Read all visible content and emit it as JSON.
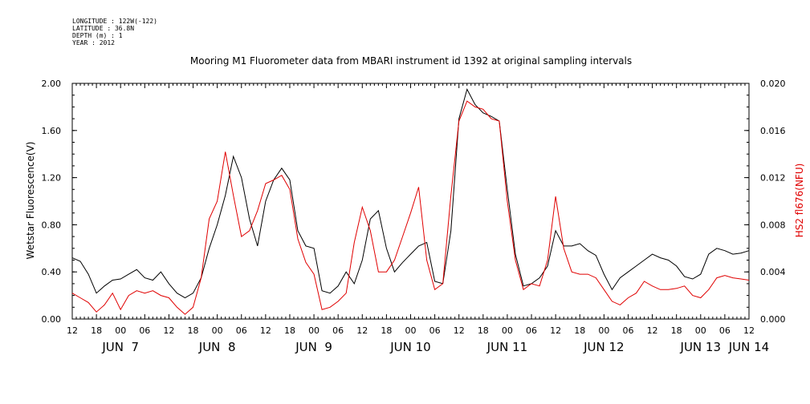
{
  "meta": {
    "longitude": "LONGITUDE : 122W(-122)",
    "latitude": "LATITUDE : 36.8N",
    "depth": "DEPTH (m) : 1",
    "year": "YEAR : 2012"
  },
  "chart_data": {
    "type": "line",
    "title": "Mooring M1 Fluorometer data from MBARI instrument id 1392 at original sampling intervals",
    "ylabel": "Wetstar Fluorescence(V)",
    "ylabel_right": "HS2 fl676(NFU)",
    "ylim": [
      0,
      2.0
    ],
    "ylim_right": [
      0,
      0.02
    ],
    "y_ticks": [
      "0.00",
      "0.40",
      "0.80",
      "1.20",
      "1.60",
      "2.00"
    ],
    "y_ticks_right": [
      "0.000",
      "0.004",
      "0.008",
      "0.012",
      "0.016",
      "0.020"
    ],
    "x_unit": "hours since JUN 7 00:00, 2012",
    "xlim": [
      -12,
      156
    ],
    "x_hour_ticks": [
      "12",
      "18",
      "00",
      "06",
      "12",
      "18",
      "00",
      "06",
      "12",
      "18",
      "00",
      "06",
      "12",
      "18",
      "00",
      "06",
      "12",
      "18",
      "00",
      "06",
      "12",
      "18",
      "00",
      "06",
      "12",
      "18",
      "00",
      "06",
      "12"
    ],
    "x_day_labels": [
      {
        "label": "JUN  7",
        "x": 0
      },
      {
        "label": "JUN  8",
        "x": 24
      },
      {
        "label": "JUN  9",
        "x": 48
      },
      {
        "label": "JUN 10",
        "x": 72
      },
      {
        "label": "JUN 11",
        "x": 96
      },
      {
        "label": "JUN 12",
        "x": 120
      },
      {
        "label": "JUN 13",
        "x": 144
      },
      {
        "label": "JUN 14",
        "x": 156
      }
    ],
    "series": [
      {
        "name": "Wetstar Fluorescence(V)",
        "axis": "left",
        "color": "#000000",
        "x": [
          -12,
          -10,
          -8,
          -6,
          -4,
          -2,
          0,
          2,
          4,
          6,
          8,
          10,
          12,
          14,
          16,
          18,
          20,
          22,
          24,
          26,
          28,
          30,
          32,
          34,
          36,
          38,
          40,
          42,
          44,
          46,
          48,
          50,
          52,
          54,
          56,
          58,
          60,
          62,
          64,
          66,
          68,
          70,
          72,
          74,
          76,
          78,
          80,
          82,
          84,
          86,
          88,
          90,
          92,
          94,
          96,
          98,
          100,
          102,
          104,
          106,
          108,
          110,
          112,
          114,
          116,
          118,
          120,
          122,
          124,
          126,
          128,
          130,
          132,
          134,
          136,
          138,
          140,
          142,
          144,
          146,
          148,
          150,
          152,
          154,
          156
        ],
        "values": [
          0.52,
          0.49,
          0.38,
          0.22,
          0.28,
          0.33,
          0.34,
          0.38,
          0.42,
          0.35,
          0.33,
          0.4,
          0.3,
          0.22,
          0.18,
          0.22,
          0.35,
          0.6,
          0.8,
          1.05,
          1.38,
          1.2,
          0.85,
          0.62,
          1.0,
          1.18,
          1.28,
          1.18,
          0.75,
          0.62,
          0.6,
          0.24,
          0.22,
          0.28,
          0.4,
          0.3,
          0.5,
          0.85,
          0.92,
          0.6,
          0.4,
          0.48,
          0.55,
          0.62,
          0.65,
          0.32,
          0.3,
          0.75,
          1.7,
          1.95,
          1.82,
          1.75,
          1.72,
          1.68,
          1.1,
          0.55,
          0.28,
          0.3,
          0.35,
          0.45,
          0.75,
          0.62,
          0.62,
          0.64,
          0.58,
          0.54,
          0.38,
          0.25,
          0.35,
          0.4,
          0.45,
          0.5,
          0.55,
          0.52,
          0.5,
          0.45,
          0.36,
          0.34,
          0.38,
          0.55,
          0.6,
          0.58,
          0.55,
          0.56,
          0.58
        ]
      },
      {
        "name": "HS2 fl676(NFU)",
        "axis": "right",
        "color": "#e00000",
        "x": [
          -12,
          -10,
          -8,
          -6,
          -4,
          -2,
          0,
          2,
          4,
          6,
          8,
          10,
          12,
          14,
          16,
          18,
          20,
          22,
          24,
          26,
          28,
          30,
          32,
          34,
          36,
          38,
          40,
          42,
          44,
          46,
          48,
          50,
          52,
          54,
          56,
          58,
          60,
          62,
          64,
          66,
          68,
          70,
          72,
          74,
          76,
          78,
          80,
          82,
          84,
          86,
          88,
          90,
          92,
          94,
          96,
          98,
          100,
          102,
          104,
          106,
          108,
          110,
          112,
          114,
          116,
          118,
          120,
          122,
          124,
          126,
          128,
          130,
          132,
          134,
          136,
          138,
          140,
          142,
          144,
          146,
          148,
          150,
          152,
          154,
          156
        ],
        "values": [
          0.0022,
          0.0018,
          0.0014,
          0.0006,
          0.0012,
          0.0022,
          0.0008,
          0.002,
          0.0024,
          0.0022,
          0.0024,
          0.002,
          0.0018,
          0.001,
          0.0004,
          0.001,
          0.0035,
          0.0085,
          0.01,
          0.0142,
          0.0105,
          0.007,
          0.0075,
          0.0092,
          0.0115,
          0.0118,
          0.0122,
          0.011,
          0.0068,
          0.0048,
          0.0038,
          0.0008,
          0.001,
          0.0015,
          0.0022,
          0.0065,
          0.0095,
          0.0075,
          0.004,
          0.004,
          0.005,
          0.007,
          0.009,
          0.0112,
          0.005,
          0.0025,
          0.003,
          0.0105,
          0.0168,
          0.0185,
          0.018,
          0.0178,
          0.017,
          0.0168,
          0.01,
          0.005,
          0.0025,
          0.003,
          0.0028,
          0.005,
          0.0104,
          0.006,
          0.004,
          0.0038,
          0.0038,
          0.0035,
          0.0025,
          0.0015,
          0.0012,
          0.0018,
          0.0022,
          0.0032,
          0.0028,
          0.0025,
          0.0025,
          0.0026,
          0.0028,
          0.002,
          0.0018,
          0.0025,
          0.0035,
          0.0037,
          0.0035,
          0.0034,
          0.0033
        ]
      }
    ]
  }
}
